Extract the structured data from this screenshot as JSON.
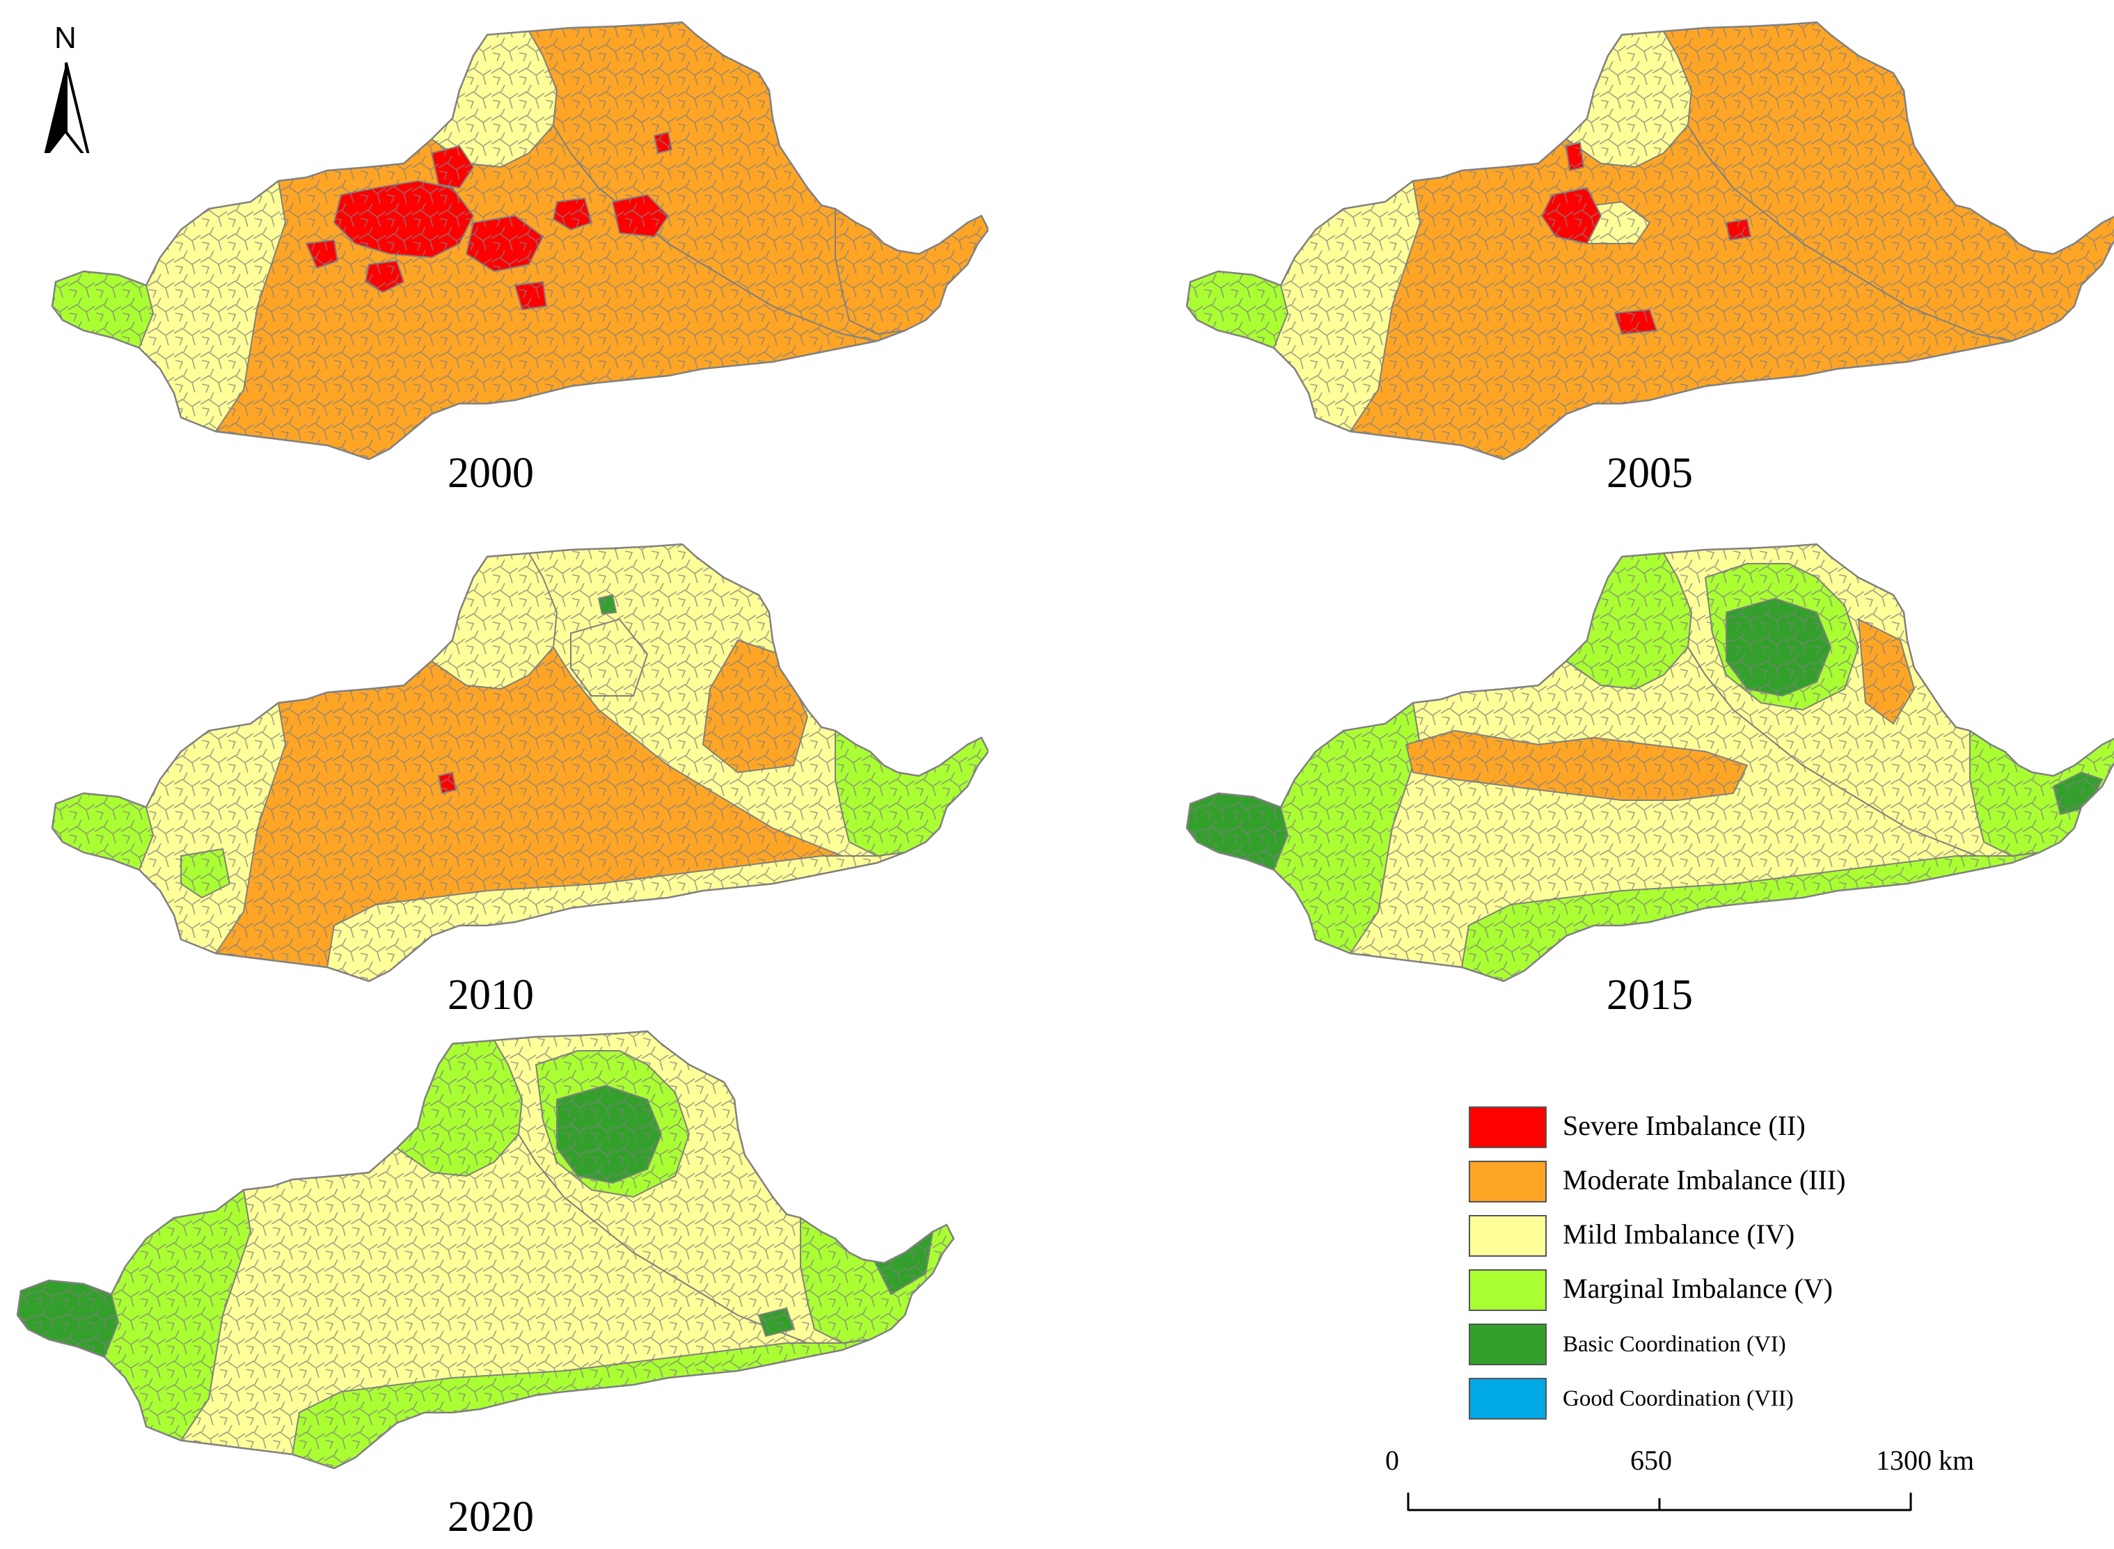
{
  "north_arrow": {
    "label": "N"
  },
  "years": [
    "2000",
    "2005",
    "2010",
    "2015",
    "2020"
  ],
  "colors": {
    "severe": "#ff0000",
    "moderate": "#ffa526",
    "mild": "#ffff99",
    "marginal": "#aaff33",
    "basic": "#33a02c",
    "good": "#00a8e6",
    "boundary": "#808080"
  },
  "legend": {
    "items": [
      {
        "label": "Severe Imbalance (II)",
        "color": "#ff0000"
      },
      {
        "label": "Moderate Imbalance (III)",
        "color": "#ffa526"
      },
      {
        "label": "Mild Imbalance (IV)",
        "color": "#ffff99"
      },
      {
        "label": "Marginal Imbalance (V)",
        "color": "#aaff33"
      },
      {
        "label": "Basic Coordination (VI)",
        "color": "#33a02c"
      },
      {
        "label": "Good Coordination (VII)",
        "color": "#00a8e6"
      }
    ]
  },
  "scale_bar": {
    "ticks": [
      "0",
      "650",
      "1300 km"
    ]
  }
}
